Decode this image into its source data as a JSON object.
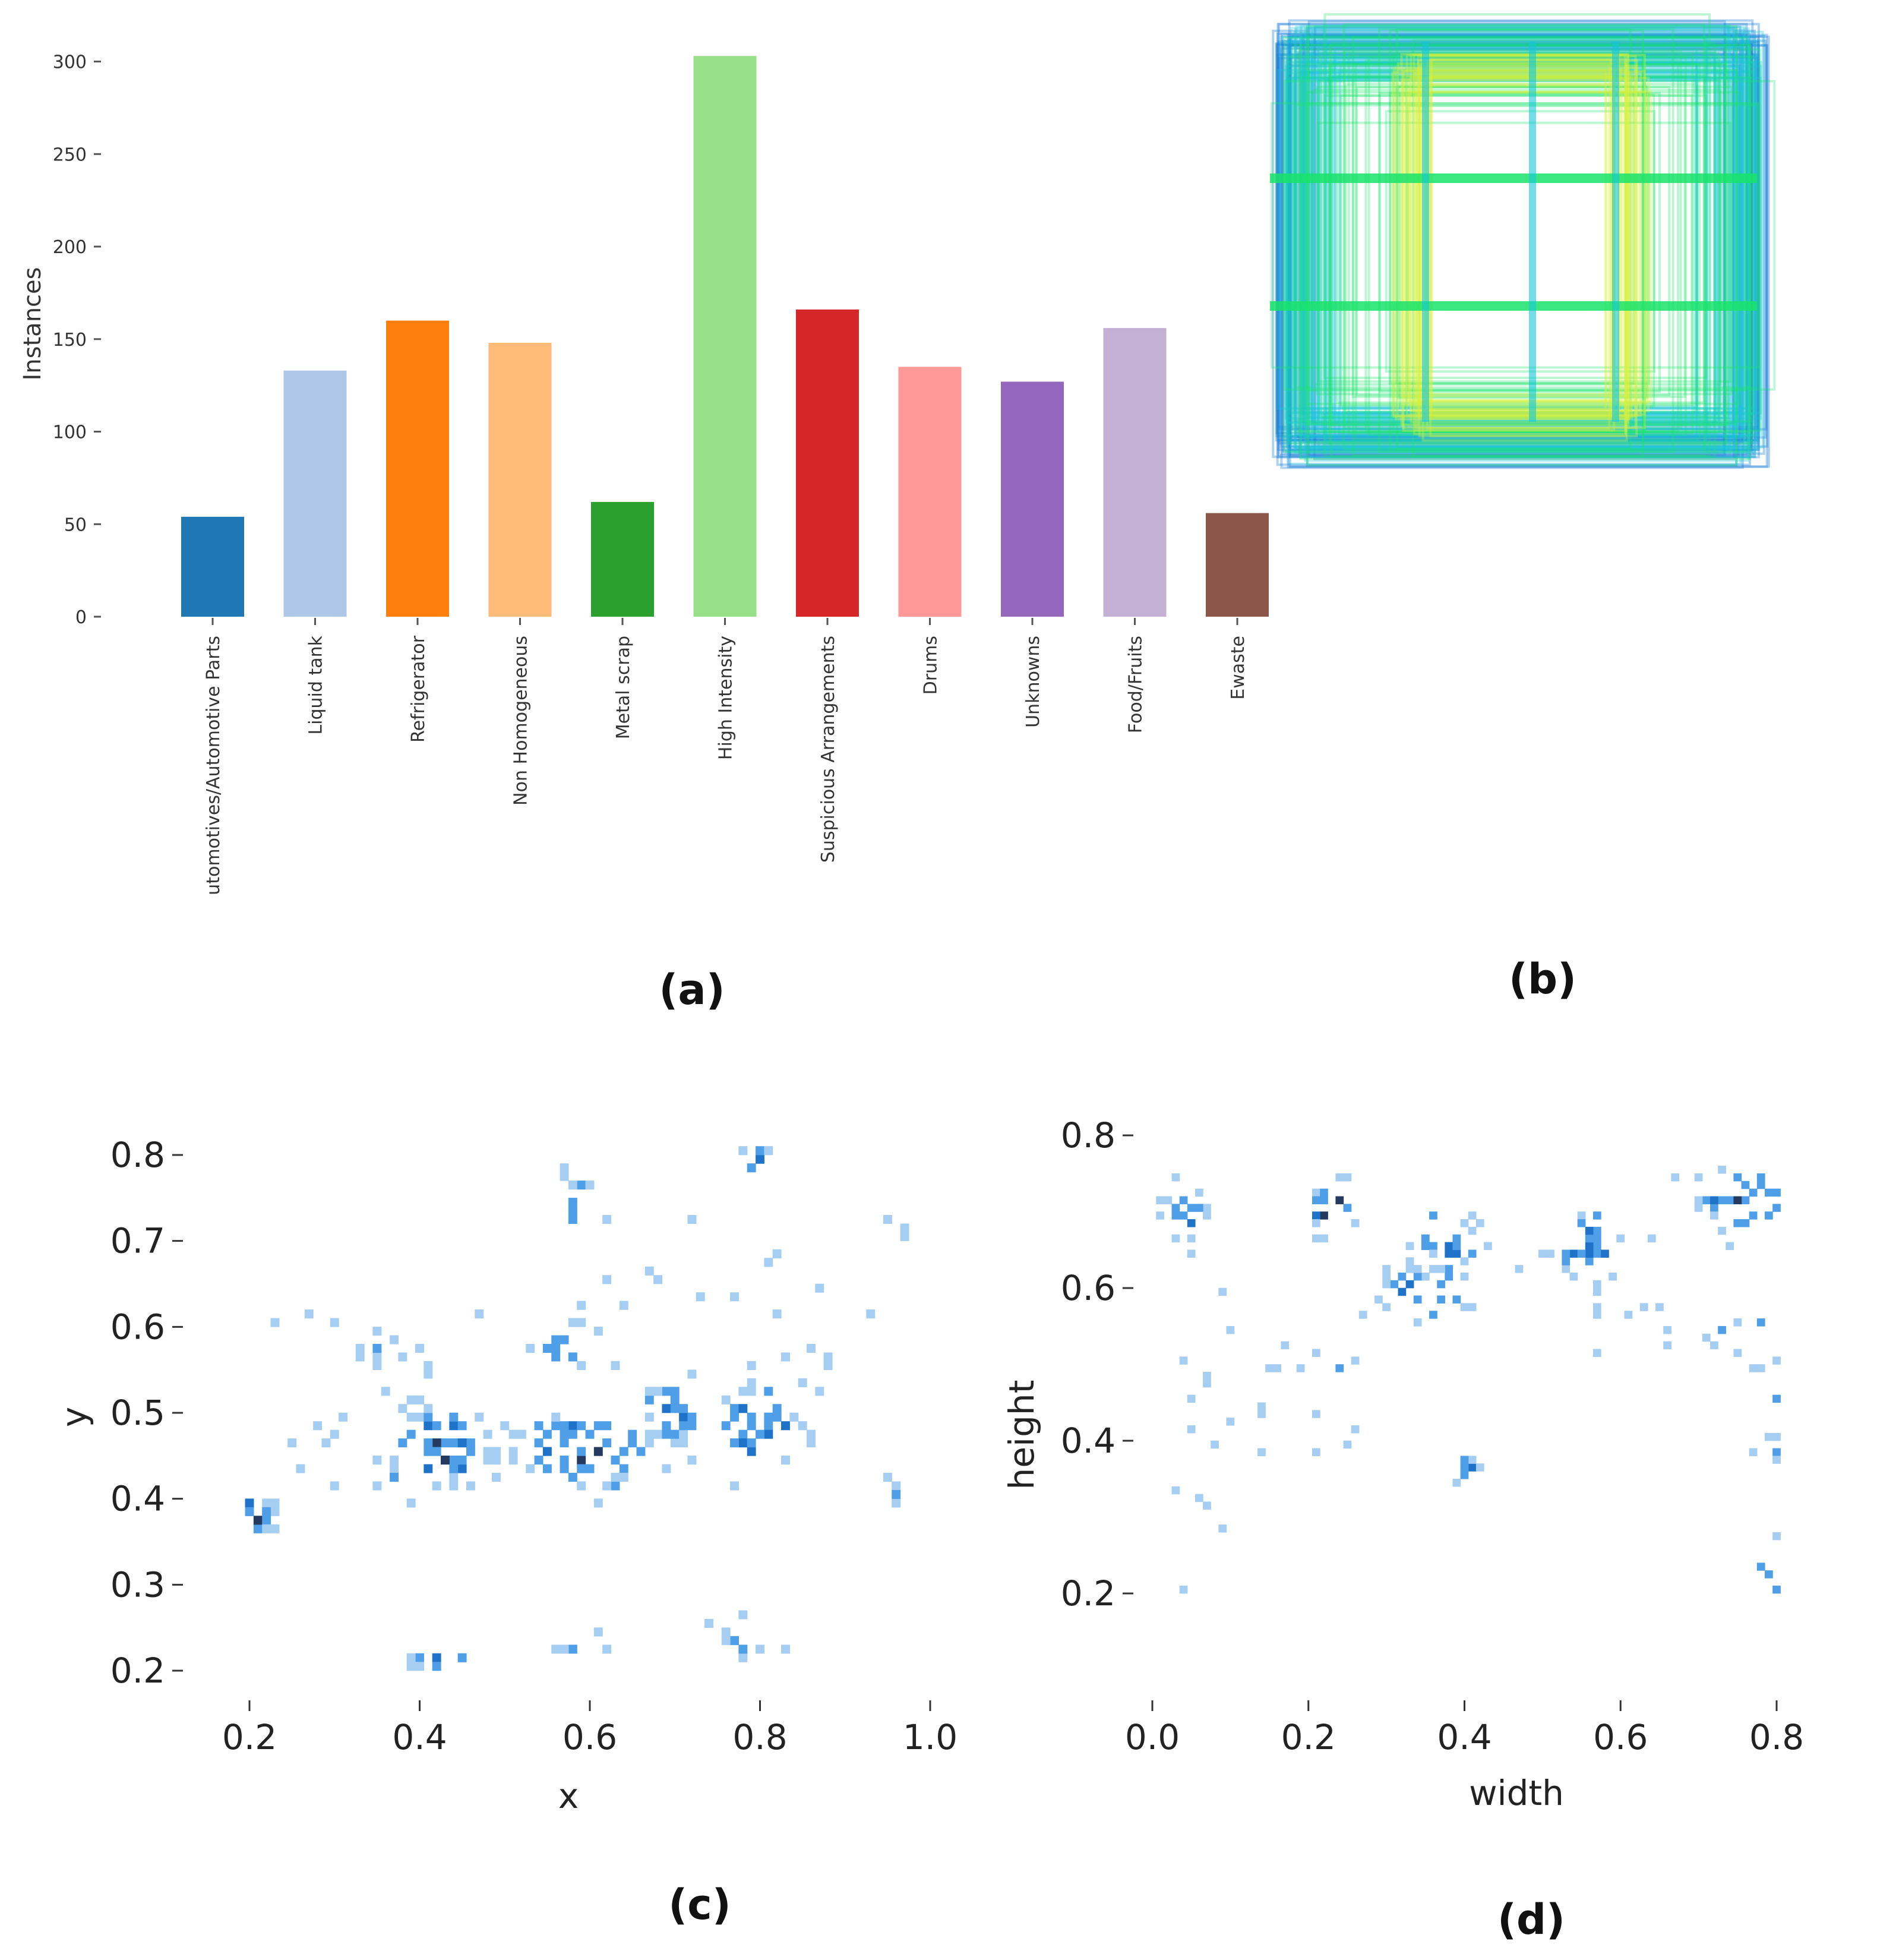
{
  "panels": {
    "a": "(a)",
    "b": "(b)",
    "c": "(c)",
    "d": "(d)"
  },
  "colors": {
    "heat_light": "#a6cdf2",
    "heat_mid": "#4f9fe8",
    "heat_dark": "#1e73c8",
    "heat_darkest": "#243a5e"
  },
  "chart_data": [
    {
      "id": "a",
      "type": "bar",
      "title": "",
      "xlabel": "",
      "ylabel": "Instances",
      "ylim": [
        0,
        305
      ],
      "yticks": [
        0,
        50,
        100,
        150,
        200,
        250,
        300
      ],
      "categories": [
        "utomotives/Automotive Parts",
        "Liquid tank",
        "Refrigerator",
        "Non Homogeneous",
        "Metal scrap",
        "High Intensity",
        "Suspicious Arrangements",
        "Drums",
        "Unknowns",
        "Food/Fruits",
        "Ewaste"
      ],
      "values": [
        54,
        133,
        160,
        148,
        62,
        303,
        166,
        135,
        127,
        156,
        56
      ],
      "bar_colors": [
        "#1f77b4",
        "#aec7e8",
        "#ff7f0e",
        "#ffbb78",
        "#2ca02c",
        "#98df8a",
        "#d62728",
        "#ff9896",
        "#9467bd",
        "#c5b0d5",
        "#8c564b"
      ]
    },
    {
      "id": "b",
      "type": "overlay",
      "description_free": true,
      "series": [
        {
          "name": "boxes-blue",
          "color": "#1a7fd6"
        },
        {
          "name": "boxes-cyan",
          "color": "#17c6d8"
        },
        {
          "name": "boxes-green",
          "color": "#19e36a"
        },
        {
          "name": "boxes-yellow",
          "color": "#d7f23c"
        }
      ]
    },
    {
      "id": "c",
      "type": "heatmap",
      "xlabel": "x",
      "ylabel": "y",
      "xlim": [
        0.13,
        1.05
      ],
      "ylim": [
        0.18,
        0.83
      ],
      "xticks": [
        "0.2",
        "0.4",
        "0.6",
        "0.8",
        "1.0"
      ],
      "yticks": [
        "0.2",
        "0.3",
        "0.4",
        "0.5",
        "0.6",
        "0.7",
        "0.8"
      ],
      "bin": 0.01,
      "clusters": [
        {
          "x": 0.2,
          "y": 0.375,
          "sx": 0.022,
          "sy": 0.012,
          "n": 22,
          "w": 2.4
        },
        {
          "x": 0.42,
          "y": 0.455,
          "sx": 0.035,
          "sy": 0.03,
          "n": 52,
          "w": 2.6
        },
        {
          "x": 0.59,
          "y": 0.455,
          "sx": 0.045,
          "sy": 0.025,
          "n": 58,
          "w": 3.0
        },
        {
          "x": 0.7,
          "y": 0.495,
          "sx": 0.018,
          "sy": 0.022,
          "n": 26,
          "w": 2.6
        },
        {
          "x": 0.8,
          "y": 0.48,
          "sx": 0.028,
          "sy": 0.028,
          "n": 32,
          "w": 2.3
        },
        {
          "x": 0.58,
          "y": 0.74,
          "sx": 0.015,
          "sy": 0.014,
          "n": 12,
          "w": 2.0
        },
        {
          "x": 0.8,
          "y": 0.79,
          "sx": 0.01,
          "sy": 0.008,
          "n": 6,
          "w": 2.0
        },
        {
          "x": 0.36,
          "y": 0.57,
          "sx": 0.04,
          "sy": 0.02,
          "n": 10,
          "w": 1.0
        },
        {
          "x": 0.58,
          "y": 0.57,
          "sx": 0.04,
          "sy": 0.025,
          "n": 14,
          "w": 1.3
        },
        {
          "x": 0.42,
          "y": 0.21,
          "sx": 0.03,
          "sy": 0.008,
          "n": 9,
          "w": 1.4
        },
        {
          "x": 0.58,
          "y": 0.22,
          "sx": 0.02,
          "sy": 0.015,
          "n": 7,
          "w": 1.0
        },
        {
          "x": 0.78,
          "y": 0.23,
          "sx": 0.025,
          "sy": 0.015,
          "n": 10,
          "w": 1.2
        },
        {
          "x": 0.68,
          "y": 0.65,
          "sx": 0.06,
          "sy": 0.05,
          "n": 10,
          "w": 0.8
        },
        {
          "x": 0.85,
          "y": 0.54,
          "sx": 0.05,
          "sy": 0.05,
          "n": 10,
          "w": 0.8
        },
        {
          "x": 0.3,
          "y": 0.48,
          "sx": 0.06,
          "sy": 0.06,
          "n": 12,
          "w": 0.8
        },
        {
          "x": 0.96,
          "y": 0.72,
          "sx": 0.01,
          "sy": 0.01,
          "n": 3,
          "w": 0.8
        },
        {
          "x": 0.96,
          "y": 0.4,
          "sx": 0.004,
          "sy": 0.015,
          "n": 4,
          "w": 1.0
        }
      ]
    },
    {
      "id": "d",
      "type": "heatmap",
      "xlabel": "width",
      "ylabel": "height",
      "xlim": [
        0.0,
        0.92
      ],
      "ylim": [
        0.08,
        0.83
      ],
      "xticks": [
        "0.0",
        "0.2",
        "0.4",
        "0.6",
        "0.8"
      ],
      "yticks": [
        "0.2",
        "0.4",
        "0.6",
        "0.8"
      ],
      "bin": 0.01,
      "clusters": [
        {
          "x": 0.04,
          "y": 0.7,
          "sx": 0.015,
          "sy": 0.022,
          "n": 18,
          "w": 3.0
        },
        {
          "x": 0.23,
          "y": 0.7,
          "sx": 0.025,
          "sy": 0.018,
          "n": 20,
          "w": 2.2
        },
        {
          "x": 0.37,
          "y": 0.66,
          "sx": 0.025,
          "sy": 0.025,
          "n": 24,
          "w": 2.4
        },
        {
          "x": 0.35,
          "y": 0.59,
          "sx": 0.035,
          "sy": 0.02,
          "n": 30,
          "w": 2.6
        },
        {
          "x": 0.56,
          "y": 0.65,
          "sx": 0.03,
          "sy": 0.03,
          "n": 30,
          "w": 2.3
        },
        {
          "x": 0.76,
          "y": 0.71,
          "sx": 0.035,
          "sy": 0.022,
          "n": 36,
          "w": 2.6
        },
        {
          "x": 0.4,
          "y": 0.36,
          "sx": 0.012,
          "sy": 0.008,
          "n": 8,
          "w": 2.5
        },
        {
          "x": 0.38,
          "y": 0.16,
          "sx": 0.015,
          "sy": 0.018,
          "n": 12,
          "w": 2.0
        },
        {
          "x": 0.8,
          "y": 0.22,
          "sx": 0.018,
          "sy": 0.025,
          "n": 14,
          "w": 2.0
        },
        {
          "x": 0.77,
          "y": 0.52,
          "sx": 0.05,
          "sy": 0.05,
          "n": 18,
          "w": 0.9
        },
        {
          "x": 0.15,
          "y": 0.45,
          "sx": 0.1,
          "sy": 0.08,
          "n": 26,
          "w": 0.8
        },
        {
          "x": 0.6,
          "y": 0.55,
          "sx": 0.05,
          "sy": 0.05,
          "n": 10,
          "w": 0.7
        },
        {
          "x": 0.8,
          "y": 0.38,
          "sx": 0.02,
          "sy": 0.015,
          "n": 6,
          "w": 1.0
        },
        {
          "x": 0.06,
          "y": 0.22,
          "sx": 0.03,
          "sy": 0.06,
          "n": 8,
          "w": 0.8
        }
      ]
    }
  ]
}
